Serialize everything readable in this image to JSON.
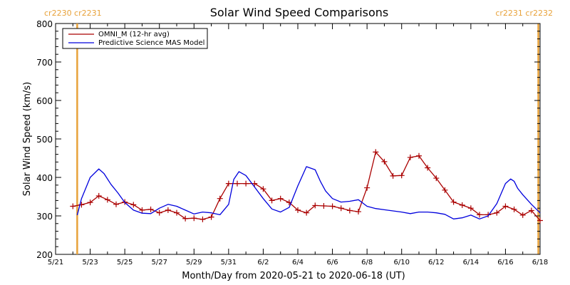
{
  "chart_data": {
    "type": "line",
    "title": "Solar Wind Speed Comparisons",
    "xlabel": "Month/Day from 2020-05-21 to 2020-06-18 (UT)",
    "ylabel": "Solar Wind Speed (km/s)",
    "xlim": [
      "2020-05-21",
      "2020-06-18"
    ],
    "ylim": [
      200,
      800
    ],
    "y_ticks": [
      200,
      300,
      400,
      500,
      600,
      700,
      800
    ],
    "x_tick_labels": [
      "5/21",
      "5/23",
      "5/25",
      "5/27",
      "5/29",
      "5/31",
      "6/2",
      "6/4",
      "6/6",
      "6/8",
      "6/10",
      "6/12",
      "6/14",
      "6/16",
      "6/18"
    ],
    "grid": false,
    "legend_position": "top-left",
    "carrington_rotations": [
      {
        "label": "cr2230 cr2231",
        "day": 1.25
      },
      {
        "label": "cr2231 cr2232",
        "day": 27.9
      }
    ],
    "rotation_color": "#e8a23a",
    "series": [
      {
        "name": "OMNI_M (12-hr avg)",
        "color": "#aa0000",
        "marker": "plus",
        "x": [
          1.0,
          1.5,
          2.0,
          2.5,
          3.0,
          3.5,
          4.0,
          4.5,
          5.0,
          5.5,
          6.0,
          6.5,
          7.0,
          7.5,
          8.0,
          8.5,
          9.0,
          9.5,
          10.0,
          10.5,
          11.0,
          11.5,
          12.0,
          12.5,
          13.0,
          13.5,
          14.0,
          14.5,
          15.0,
          15.5,
          16.0,
          16.5,
          17.0,
          17.5,
          18.0,
          18.5,
          19.0,
          19.5,
          20.0,
          20.5,
          21.0,
          21.5,
          22.0,
          22.5,
          23.0,
          23.5,
          24.0,
          24.5,
          25.0,
          25.5,
          26.0,
          26.5,
          27.0,
          27.5,
          28.0
        ],
        "values": [
          325,
          329,
          335,
          352,
          342,
          330,
          336,
          329,
          315,
          317,
          308,
          315,
          308,
          293,
          294,
          291,
          297,
          345,
          384,
          384,
          384,
          384,
          370,
          340,
          345,
          335,
          315,
          308,
          327,
          326,
          325,
          320,
          314,
          311,
          373,
          466,
          441,
          404,
          405,
          452,
          456,
          425,
          398,
          367,
          336,
          328,
          320,
          303,
          303,
          308,
          325,
          317,
          302,
          314,
          288
        ]
      },
      {
        "name": "Predictive Science MAS Model",
        "color": "#0000dd",
        "marker": "none",
        "x": [
          1.25,
          1.5,
          2.0,
          2.5,
          2.8,
          3.2,
          3.6,
          4.0,
          4.5,
          5.0,
          5.5,
          6.0,
          6.5,
          7.0,
          7.5,
          8.0,
          8.5,
          9.0,
          9.5,
          10.0,
          10.3,
          10.6,
          11.0,
          11.5,
          12.0,
          12.5,
          13.0,
          13.5,
          14.0,
          14.5,
          15.0,
          15.3,
          15.6,
          16.0,
          16.5,
          17.0,
          17.5,
          18.0,
          18.5,
          19.0,
          19.5,
          20.0,
          20.5,
          21.0,
          21.5,
          22.0,
          22.5,
          23.0,
          23.5,
          24.0,
          24.5,
          25.0,
          25.5,
          26.0,
          26.3,
          26.5,
          26.7,
          27.0,
          27.5,
          28.0
        ],
        "values": [
          302,
          345,
          400,
          422,
          410,
          382,
          360,
          335,
          315,
          307,
          306,
          320,
          330,
          325,
          315,
          305,
          310,
          308,
          303,
          330,
          395,
          415,
          405,
          375,
          345,
          318,
          310,
          322,
          378,
          428,
          420,
          390,
          365,
          345,
          336,
          338,
          342,
          325,
          319,
          316,
          313,
          310,
          306,
          310,
          310,
          308,
          304,
          292,
          295,
          302,
          292,
          300,
          332,
          384,
          396,
          390,
          372,
          355,
          330,
          308
        ]
      }
    ]
  }
}
